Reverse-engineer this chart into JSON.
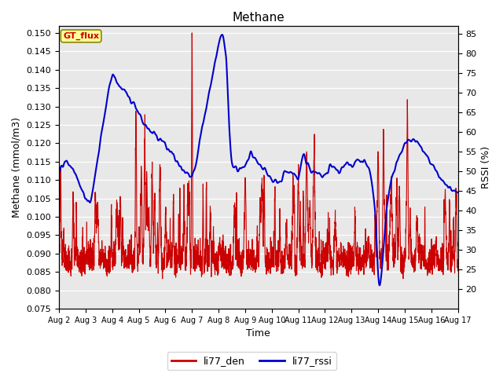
{
  "title": "Methane",
  "ylabel_left": "Methane (mmol/m3)",
  "ylabel_right": "RSSI (%)",
  "xlabel": "Time",
  "ylim_left": [
    0.075,
    0.152
  ],
  "ylim_right": [
    15,
    87
  ],
  "yticks_left": [
    0.075,
    0.08,
    0.085,
    0.09,
    0.095,
    0.1,
    0.105,
    0.11,
    0.115,
    0.12,
    0.125,
    0.13,
    0.135,
    0.14,
    0.145,
    0.15
  ],
  "yticks_right": [
    20,
    25,
    30,
    35,
    40,
    45,
    50,
    55,
    60,
    65,
    70,
    75,
    80,
    85
  ],
  "color_red": "#cc0000",
  "color_blue": "#0000cc",
  "bg_color": "#e8e8e8",
  "legend_labels": [
    "li77_den",
    "li77_rssi"
  ],
  "annotation_text": "GT_flux",
  "annotation_color": "#cc0000",
  "annotation_bg": "#ffff99",
  "annotation_border": "#888800",
  "lw_red": 0.8,
  "lw_blue": 1.5,
  "xtick_labels": [
    "Aug 2",
    "Aug 3",
    "Aug 4",
    "Aug 5",
    "Aug 6",
    "Aug 7",
    "Aug 8",
    "Aug 9",
    "Aug 10",
    "Aug 11",
    "Aug 12",
    "Aug 13",
    "Aug 14",
    "Aug 15",
    "Aug 16",
    "Aug 17"
  ],
  "xtick_positions": [
    2,
    3,
    4,
    5,
    6,
    7,
    8,
    9,
    10,
    11,
    12,
    13,
    14,
    15,
    16,
    17
  ]
}
